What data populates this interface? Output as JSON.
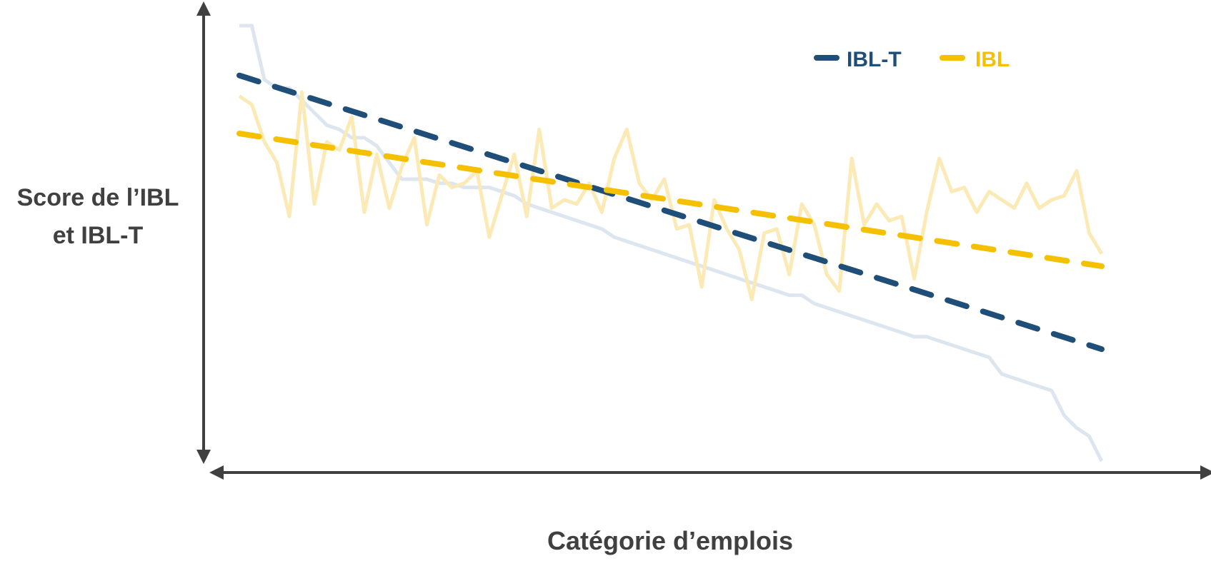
{
  "chart_data": {
    "type": "line",
    "title": "",
    "xlabel": "Catégorie d’emplois",
    "ylabel_lines": [
      "Score de l’IBL",
      "et IBL-T"
    ],
    "x_ticks_shown": false,
    "y_ticks_shown": false,
    "grid": false,
    "legend_position": "top-right",
    "xlim": [
      1,
      70
    ],
    "ylim": [
      0,
      100
    ],
    "series": [
      {
        "name": "IBL-T",
        "color": "#1f4e79",
        "kind": "trendline",
        "style": "dashed",
        "values": [
          88,
          22
        ]
      },
      {
        "name": "IBL",
        "color": "#f5c000",
        "kind": "trendline",
        "style": "dashed",
        "values": [
          74,
          42
        ]
      },
      {
        "name": "",
        "color": "#dde6ef",
        "kind": "raw",
        "style": "solid",
        "values": [
          100,
          100,
          87,
          85,
          85,
          82,
          79,
          76,
          75,
          73,
          73,
          71,
          67,
          63,
          63,
          63,
          62,
          62,
          61,
          61,
          61,
          60,
          59,
          57,
          56,
          55,
          54,
          53,
          52,
          51,
          49,
          48,
          47,
          46,
          45,
          44,
          43,
          42,
          41,
          40,
          39,
          38,
          37,
          36,
          35,
          35,
          33,
          32,
          31,
          30,
          29,
          28,
          27,
          26,
          25,
          25,
          24,
          23,
          22,
          21,
          20,
          16,
          15,
          14,
          13,
          12,
          6,
          3,
          1,
          -5
        ]
      },
      {
        "name": "",
        "color": "#fbeab5",
        "kind": "raw",
        "style": "solid",
        "values": [
          83,
          81,
          72,
          67,
          54,
          84,
          57,
          72,
          70,
          78,
          55,
          69,
          56,
          66,
          73,
          52,
          64,
          61,
          62,
          65,
          49,
          59,
          69,
          54,
          75,
          56,
          58,
          57,
          62,
          55,
          68,
          75,
          62,
          58,
          63,
          51,
          52,
          37,
          58,
          51,
          46,
          34,
          50,
          51,
          40,
          57,
          52,
          40,
          36,
          68,
          52,
          57,
          53,
          54,
          39,
          55,
          68,
          60,
          61,
          55,
          60,
          58,
          56,
          62,
          56,
          58,
          59,
          65,
          50,
          45
        ]
      }
    ],
    "legend": [
      {
        "label": "IBL-T",
        "color": "#1f4e79"
      },
      {
        "label": "IBL",
        "color": "#f5c000"
      }
    ]
  }
}
